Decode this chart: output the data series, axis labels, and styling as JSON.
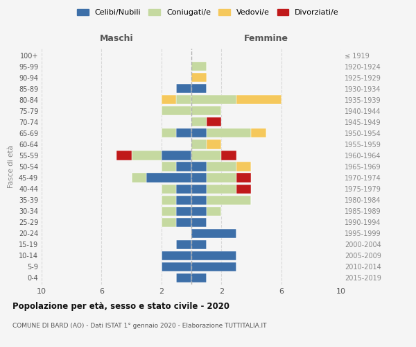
{
  "age_groups": [
    "0-4",
    "5-9",
    "10-14",
    "15-19",
    "20-24",
    "25-29",
    "30-34",
    "35-39",
    "40-44",
    "45-49",
    "50-54",
    "55-59",
    "60-64",
    "65-69",
    "70-74",
    "75-79",
    "80-84",
    "85-89",
    "90-94",
    "95-99",
    "100+"
  ],
  "birth_years": [
    "2015-2019",
    "2010-2014",
    "2005-2009",
    "2000-2004",
    "1995-1999",
    "1990-1994",
    "1985-1989",
    "1980-1984",
    "1975-1979",
    "1970-1974",
    "1965-1969",
    "1960-1964",
    "1955-1959",
    "1950-1954",
    "1945-1949",
    "1940-1944",
    "1935-1939",
    "1930-1934",
    "1925-1929",
    "1920-1924",
    "≤ 1919"
  ],
  "colors": {
    "celibi": "#3d6fa8",
    "coniugati": "#c5d9a0",
    "vedovi": "#f5c85c",
    "divorziati": "#c0191a"
  },
  "maschi": {
    "celibi": [
      1,
      2,
      2,
      1,
      0,
      1,
      1,
      1,
      1,
      3,
      1,
      2,
      0,
      1,
      0,
      0,
      0,
      1,
      0,
      0,
      0
    ],
    "coniugati": [
      0,
      0,
      0,
      0,
      0,
      1,
      1,
      1,
      1,
      1,
      1,
      2,
      0,
      1,
      0,
      2,
      1,
      0,
      0,
      0,
      0
    ],
    "vedovi": [
      0,
      0,
      0,
      0,
      0,
      0,
      0,
      0,
      0,
      0,
      0,
      0,
      0,
      0,
      0,
      0,
      1,
      0,
      0,
      0,
      0
    ],
    "divorziati": [
      0,
      0,
      0,
      0,
      0,
      0,
      0,
      0,
      0,
      0,
      0,
      1,
      0,
      0,
      0,
      0,
      0,
      0,
      0,
      0,
      0
    ]
  },
  "femmine": {
    "celibi": [
      1,
      3,
      3,
      1,
      3,
      1,
      1,
      1,
      1,
      1,
      1,
      0,
      0,
      1,
      0,
      0,
      0,
      1,
      0,
      0,
      0
    ],
    "coniugati": [
      0,
      0,
      0,
      0,
      0,
      0,
      1,
      3,
      2,
      2,
      2,
      2,
      1,
      3,
      1,
      2,
      3,
      0,
      0,
      1,
      0
    ],
    "vedovi": [
      0,
      0,
      0,
      0,
      0,
      0,
      0,
      0,
      0,
      0,
      1,
      0,
      1,
      1,
      0,
      0,
      3,
      0,
      1,
      0,
      0
    ],
    "divorziati": [
      0,
      0,
      0,
      0,
      0,
      0,
      0,
      0,
      1,
      1,
      0,
      1,
      0,
      0,
      1,
      0,
      0,
      0,
      0,
      0,
      0
    ]
  },
  "title": "Popolazione per età, sesso e stato civile - 2020",
  "subtitle": "COMUNE DI BARD (AO) - Dati ISTAT 1° gennaio 2020 - Elaborazione TUTTITALIA.IT",
  "xlabel_left": "Maschi",
  "xlabel_right": "Femmine",
  "ylabel_left": "Fasce di età",
  "xlim": 10,
  "legend_labels": [
    "Celibi/Nubili",
    "Coniugati/e",
    "Vedovi/e",
    "Divorziati/e"
  ],
  "background_color": "#f5f5f5"
}
